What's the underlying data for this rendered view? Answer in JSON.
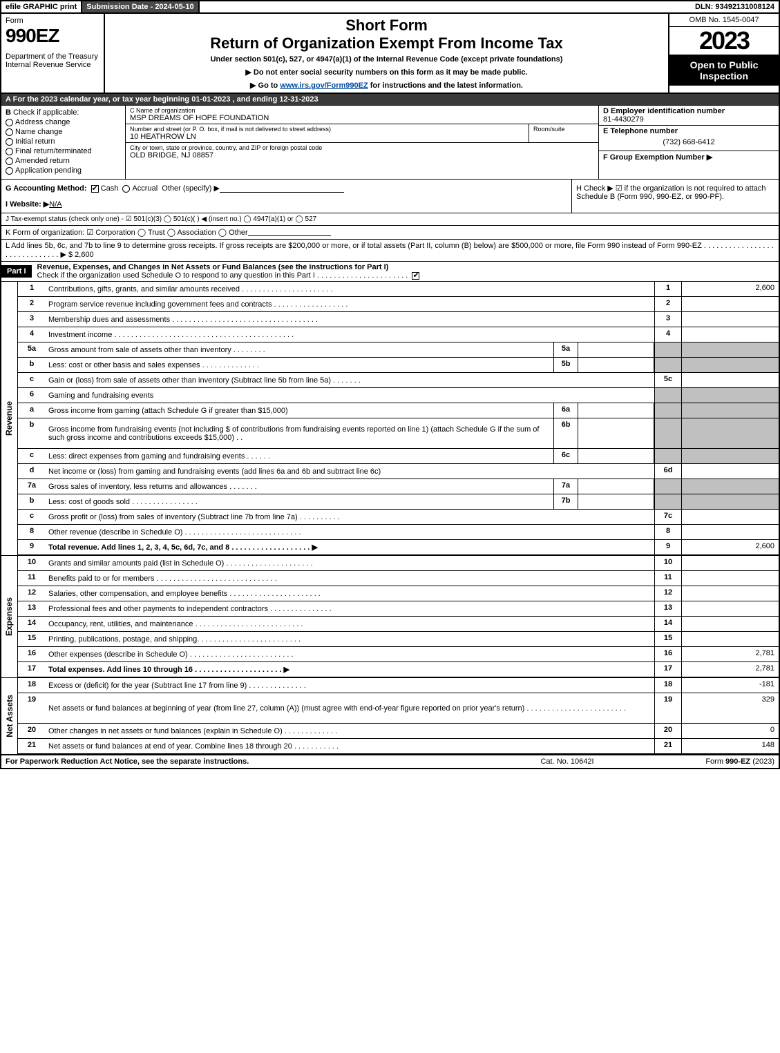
{
  "topbar": {
    "efile": "efile GRAPHIC print",
    "submission": "Submission Date - 2024-05-10",
    "dln": "DLN: 93492131008124"
  },
  "header": {
    "form_word": "Form",
    "form_num": "990EZ",
    "dept": "Department of the Treasury\nInternal Revenue Service",
    "short_form": "Short Form",
    "title": "Return of Organization Exempt From Income Tax",
    "subtitle": "Under section 501(c), 527, or 4947(a)(1) of the Internal Revenue Code (except private foundations)",
    "note1": "▶ Do not enter social security numbers on this form as it may be made public.",
    "note2_pre": "▶ Go to ",
    "note2_link": "www.irs.gov/Form990EZ",
    "note2_post": " for instructions and the latest information.",
    "omb": "OMB No. 1545-0047",
    "year": "2023",
    "open": "Open to Public Inspection"
  },
  "A": "For the 2023 calendar year, or tax year beginning 01-01-2023 , and ending 12-31-2023",
  "B": {
    "label": "Check if applicable:",
    "opts": [
      "Address change",
      "Name change",
      "Initial return",
      "Final return/terminated",
      "Amended return",
      "Application pending"
    ]
  },
  "C": {
    "name_lbl": "C Name of organization",
    "name": "MSP DREAMS OF HOPE FOUNDATION",
    "street_lbl": "Number and street (or P. O. box, if mail is not delivered to street address)",
    "street": "10 HEATHROW LN",
    "room_lbl": "Room/suite",
    "city_lbl": "City or town, state or province, country, and ZIP or foreign postal code",
    "city": "OLD BRIDGE, NJ  08857"
  },
  "D": {
    "lbl": "D Employer identification number",
    "val": "81-4430279"
  },
  "E": {
    "lbl": "E Telephone number",
    "val": "(732) 668-6412"
  },
  "F": {
    "lbl": "F Group Exemption Number  ▶"
  },
  "G": {
    "lbl": "G Accounting Method:",
    "cash": "Cash",
    "accrual": "Accrual",
    "other": "Other (specify) ▶"
  },
  "H": {
    "text": "H  Check ▶  ☑  if the organization is not required to attach Schedule B (Form 990, 990-EZ, or 990-PF)."
  },
  "I": {
    "lbl": "I Website: ▶",
    "val": "N/A"
  },
  "J": {
    "text": "J Tax-exempt status (check only one) - ☑ 501(c)(3)  ◯ 501(c)(  ) ◀ (insert no.)  ◯ 4947(a)(1) or  ◯ 527"
  },
  "K": {
    "text": "K Form of organization:   ☑ Corporation   ◯ Trust   ◯ Association   ◯ Other"
  },
  "L": {
    "text": "L Add lines 5b, 6c, and 7b to line 9 to determine gross receipts. If gross receipts are $200,000 or more, or if total assets (Part II, column (B) below) are $500,000 or more, file Form 990 instead of Form 990-EZ  . . . . . . . . . . . . . . . . . . . . . . . . . . . . . .  ▶ $ 2,600"
  },
  "part1": {
    "label": "Part I",
    "title": "Revenue, Expenses, and Changes in Net Assets or Fund Balances (see the instructions for Part I)",
    "check": "Check if the organization used Schedule O to respond to any question in this Part I . . . . . . . . . . . . . . . . . . . . . .",
    "checked": true
  },
  "revenue_lines": [
    {
      "n": "1",
      "d": "Contributions, gifts, grants, and similar amounts received  . . . . . . . . . . . . . . . . . . . . . .",
      "rn": "1",
      "rv": "2,600"
    },
    {
      "n": "2",
      "d": "Program service revenue including government fees and contracts  . . . . . . . . . . . . . . . . . .",
      "rn": "2",
      "rv": ""
    },
    {
      "n": "3",
      "d": "Membership dues and assessments  . . . . . . . . . . . . . . . . . . . . . . . . . . . . . . . . . . .",
      "rn": "3",
      "rv": ""
    },
    {
      "n": "4",
      "d": "Investment income  . . . . . . . . . . . . . . . . . . . . . . . . . . . . . . . . . . . . . . . . . . .",
      "rn": "4",
      "rv": ""
    },
    {
      "n": "5a",
      "d": "Gross amount from sale of assets other than inventory  . . . . . . . .",
      "sub": "5a",
      "shade": true
    },
    {
      "n": "b",
      "d": "Less: cost or other basis and sales expenses  . . . . . . . . . . . . . .",
      "sub": "5b",
      "shade": true
    },
    {
      "n": "c",
      "d": "Gain or (loss) from sale of assets other than inventory (Subtract line 5b from line 5a)  . . . . . . .",
      "rn": "5c",
      "rv": ""
    },
    {
      "n": "6",
      "d": "Gaming and fundraising events",
      "noright": true
    },
    {
      "n": "a",
      "d": "Gross income from gaming (attach Schedule G if greater than $15,000)",
      "sub": "6a",
      "shade": true
    },
    {
      "n": "b",
      "d": "Gross income from fundraising events (not including $                       of contributions from fundraising events reported on line 1) (attach Schedule G if the sum of such gross income and contributions exceeds $15,000)   . .",
      "sub": "6b",
      "shade": true,
      "tall": true
    },
    {
      "n": "c",
      "d": "Less: direct expenses from gaming and fundraising events   . . . . . .",
      "sub": "6c",
      "shade": true
    },
    {
      "n": "d",
      "d": "Net income or (loss) from gaming and fundraising events (add lines 6a and 6b and subtract line 6c)",
      "rn": "6d",
      "rv": ""
    },
    {
      "n": "7a",
      "d": "Gross sales of inventory, less returns and allowances  . . . . . . .",
      "sub": "7a",
      "shade": true
    },
    {
      "n": "b",
      "d": "Less: cost of goods sold         . . . . . . . . . . . . . . . .",
      "sub": "7b",
      "shade": true
    },
    {
      "n": "c",
      "d": "Gross profit or (loss) from sales of inventory (Subtract line 7b from line 7a)  . . . . . . . . . .",
      "rn": "7c",
      "rv": ""
    },
    {
      "n": "8",
      "d": "Other revenue (describe in Schedule O)  . . . . . . . . . . . . . . . . . . . . . . . . . . . .",
      "rn": "8",
      "rv": ""
    },
    {
      "n": "9",
      "d": "Total revenue. Add lines 1, 2, 3, 4, 5c, 6d, 7c, and 8  . . . . . . . . . . . . . . . . . . .  ▶",
      "rn": "9",
      "rv": "2,600",
      "bold": true
    }
  ],
  "expense_lines": [
    {
      "n": "10",
      "d": "Grants and similar amounts paid (list in Schedule O)  . . . . . . . . . . . . . . . . . . . . .",
      "rn": "10",
      "rv": ""
    },
    {
      "n": "11",
      "d": "Benefits paid to or for members      . . . . . . . . . . . . . . . . . . . . . . . . . . . . .",
      "rn": "11",
      "rv": ""
    },
    {
      "n": "12",
      "d": "Salaries, other compensation, and employee benefits . . . . . . . . . . . . . . . . . . . . . .",
      "rn": "12",
      "rv": ""
    },
    {
      "n": "13",
      "d": "Professional fees and other payments to independent contractors  . . . . . . . . . . . . . . .",
      "rn": "13",
      "rv": ""
    },
    {
      "n": "14",
      "d": "Occupancy, rent, utilities, and maintenance . . . . . . . . . . . . . . . . . . . . . . . . . .",
      "rn": "14",
      "rv": ""
    },
    {
      "n": "15",
      "d": "Printing, publications, postage, and shipping.  . . . . . . . . . . . . . . . . . . . . . . . .",
      "rn": "15",
      "rv": ""
    },
    {
      "n": "16",
      "d": "Other expenses (describe in Schedule O)     . . . . . . . . . . . . . . . . . . . . . . . . .",
      "rn": "16",
      "rv": "2,781"
    },
    {
      "n": "17",
      "d": "Total expenses. Add lines 10 through 16     . . . . . . . . . . . . . . . . . . . . .  ▶",
      "rn": "17",
      "rv": "2,781",
      "bold": true
    }
  ],
  "netasset_lines": [
    {
      "n": "18",
      "d": "Excess or (deficit) for the year (Subtract line 17 from line 9)       . . . . . . . . . . . . . .",
      "rn": "18",
      "rv": "-181"
    },
    {
      "n": "19",
      "d": "Net assets or fund balances at beginning of year (from line 27, column (A)) (must agree with end-of-year figure reported on prior year's return) . . . . . . . . . . . . . . . . . . . . . . . .",
      "rn": "19",
      "rv": "329",
      "tall": true
    },
    {
      "n": "20",
      "d": "Other changes in net assets or fund balances (explain in Schedule O) . . . . . . . . . . . . .",
      "rn": "20",
      "rv": "0"
    },
    {
      "n": "21",
      "d": "Net assets or fund balances at end of year. Combine lines 18 through 20 . . . . . . . . . . .",
      "rn": "21",
      "rv": "148"
    }
  ],
  "vlabels": {
    "rev": "Revenue",
    "exp": "Expenses",
    "net": "Net Assets"
  },
  "footer": {
    "l": "For Paperwork Reduction Act Notice, see the separate instructions.",
    "c": "Cat. No. 10642I",
    "r": "Form 990-EZ (2023)"
  }
}
